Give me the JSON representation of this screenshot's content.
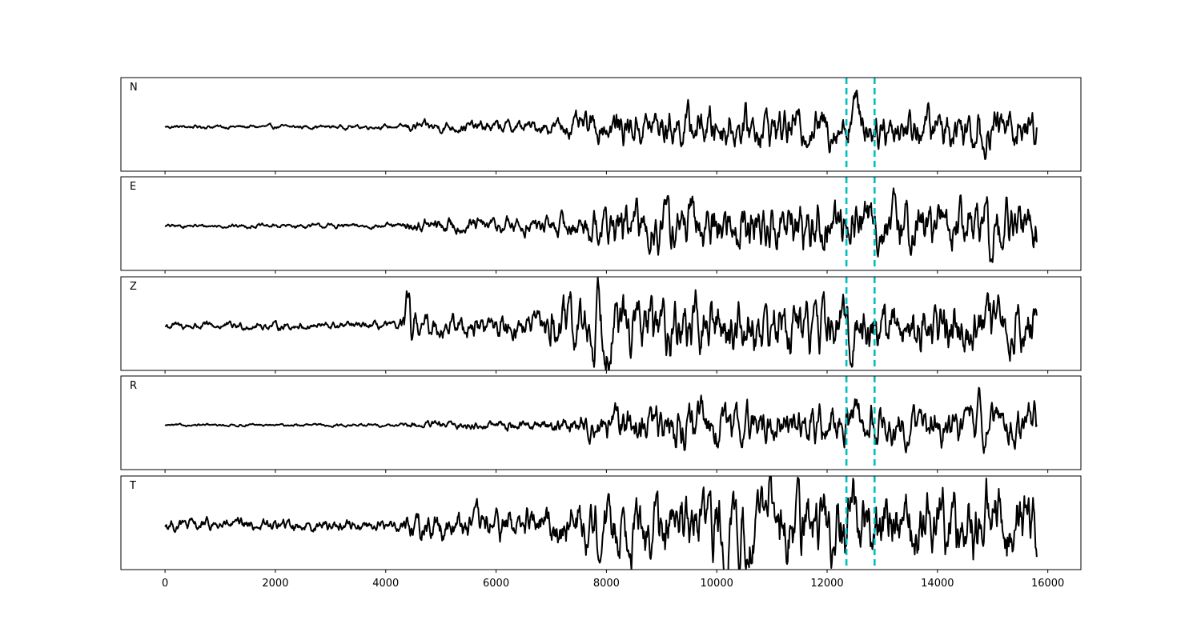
{
  "chart_data": {
    "type": "line",
    "xlim": [
      -800,
      16600
    ],
    "x_ticks": [
      0,
      2000,
      4000,
      6000,
      8000,
      10000,
      12000,
      14000,
      16000
    ],
    "x_tick_labels": [
      "0",
      "2000",
      "4000",
      "6000",
      "8000",
      "10000",
      "12000",
      "14000",
      "16000"
    ],
    "picks": [
      12350,
      12860
    ],
    "pick_color": "#00bfbf",
    "trace_color": "#000000",
    "grid": false,
    "y_ticks_visible": false,
    "signal_x_range": [
      0,
      15800
    ],
    "panels": [
      {
        "channel": "N",
        "ylim": [
          -6,
          6
        ],
        "peak_time": 14750
      },
      {
        "channel": "E",
        "ylim": [
          -6,
          6
        ],
        "peak_time": 14750
      },
      {
        "channel": "Z",
        "ylim": [
          -6,
          6
        ],
        "peak_time": 7900
      },
      {
        "channel": "R",
        "ylim": [
          -6,
          6
        ],
        "peak_time": 14750
      },
      {
        "channel": "T",
        "ylim": [
          -6,
          6
        ],
        "peak_time": 14880
      }
    ]
  }
}
